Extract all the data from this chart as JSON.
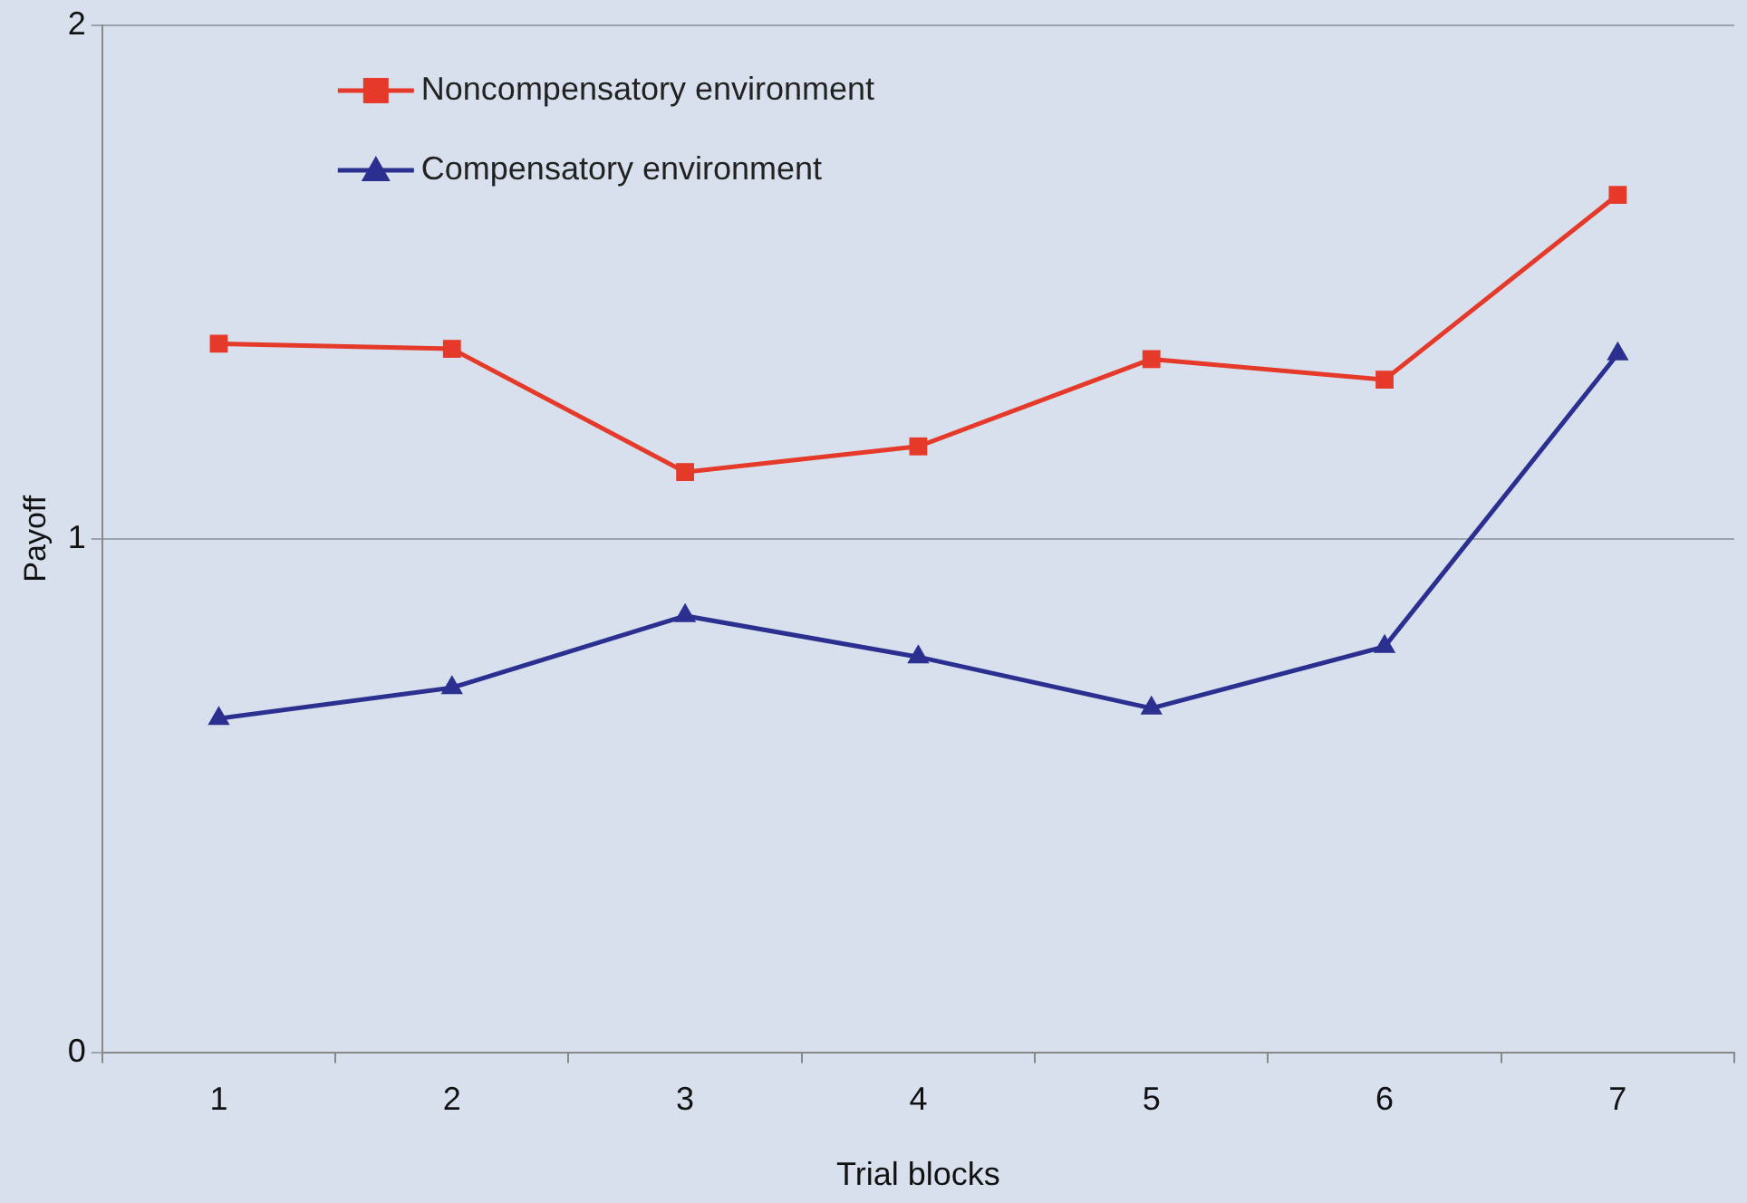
{
  "chart_data": {
    "type": "line",
    "xlabel": "Trial blocks",
    "ylabel": "Payoff",
    "categories": [
      "1",
      "2",
      "3",
      "4",
      "5",
      "6",
      "7"
    ],
    "series": [
      {
        "name": "Noncompensatory environment",
        "color": "#e5392a",
        "marker": "square",
        "values": [
          1.38,
          1.37,
          1.13,
          1.18,
          1.35,
          1.31,
          1.67
        ]
      },
      {
        "name": "Compensatory environment",
        "color": "#2b2f8f",
        "marker": "triangle",
        "values": [
          0.65,
          0.71,
          0.85,
          0.77,
          0.67,
          0.79,
          1.36
        ]
      }
    ],
    "ylim": [
      0,
      2
    ],
    "yticks": [
      0,
      1,
      2
    ],
    "grid": "y",
    "legend": "top left",
    "line_style": "solid"
  }
}
